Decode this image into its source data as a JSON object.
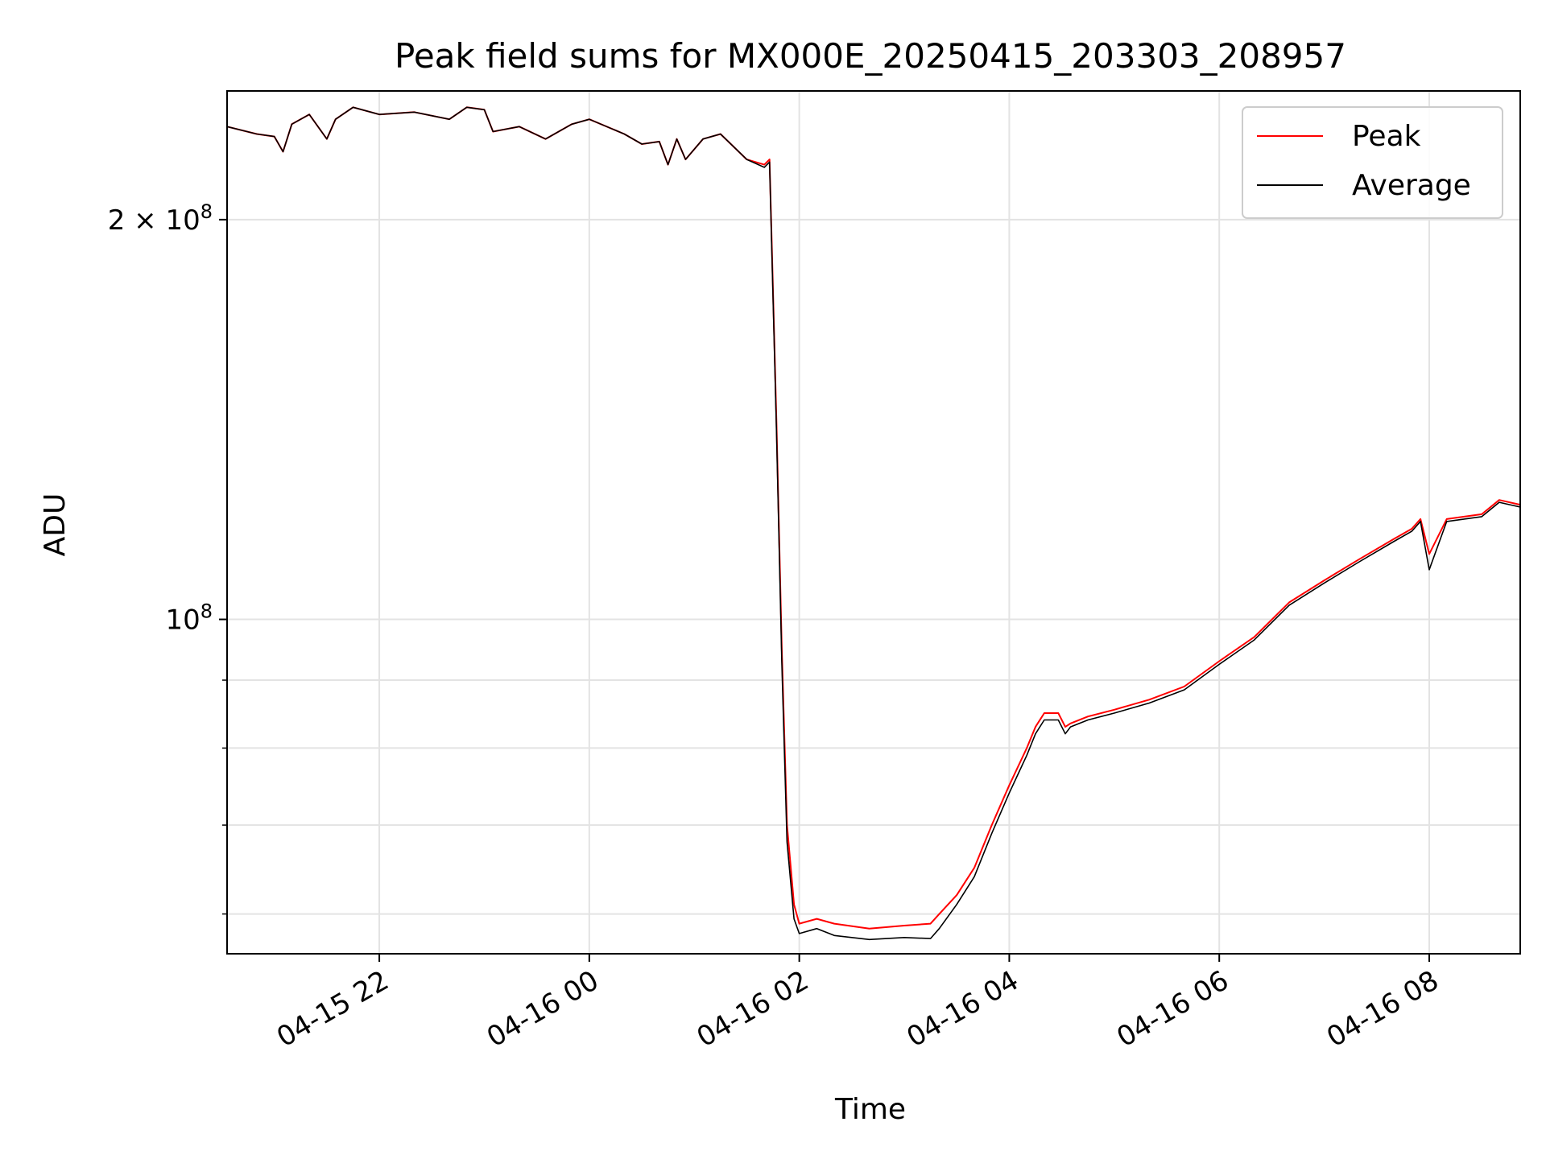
{
  "chart_data": {
    "type": "line",
    "title": "Peak field sums for MX000E_20250415_203303_208957",
    "xlabel": "Time",
    "ylabel": "ADU",
    "x_range": [
      "2025-04-15 20:33",
      "2025-04-16 08:52"
    ],
    "y_scale": "log",
    "ylim": [
      56000000,
      250000000
    ],
    "grid": true,
    "legend_position": "top-right",
    "x_ticks": [
      {
        "t": "2025-04-15 22:00",
        "label": "04-15 22"
      },
      {
        "t": "2025-04-16 00:00",
        "label": "04-16 00"
      },
      {
        "t": "2025-04-16 02:00",
        "label": "04-16 02"
      },
      {
        "t": "2025-04-16 04:00",
        "label": "04-16 04"
      },
      {
        "t": "2025-04-16 06:00",
        "label": "04-16 06"
      },
      {
        "t": "2025-04-16 08:00",
        "label": "04-16 08"
      }
    ],
    "y_major_ticks": [
      {
        "value": 100000000,
        "base": "",
        "exp": "8"
      },
      {
        "value": 200000000,
        "base": "2",
        "exp": "8"
      }
    ],
    "y_minor_ticks": [
      60000000,
      70000000,
      80000000,
      90000000
    ],
    "series": [
      {
        "name": "Peak",
        "color": "#ff0000",
        "points": [
          [
            "2025-04-15 20:33",
            235000000
          ],
          [
            "2025-04-15 20:50",
            232000000
          ],
          [
            "2025-04-15 21:00",
            231000000
          ],
          [
            "2025-04-15 21:05",
            225000000
          ],
          [
            "2025-04-15 21:10",
            236000000
          ],
          [
            "2025-04-15 21:20",
            240000000
          ],
          [
            "2025-04-15 21:30",
            230000000
          ],
          [
            "2025-04-15 21:35",
            238000000
          ],
          [
            "2025-04-15 21:45",
            243000000
          ],
          [
            "2025-04-15 22:00",
            240000000
          ],
          [
            "2025-04-15 22:20",
            241000000
          ],
          [
            "2025-04-15 22:40",
            238000000
          ],
          [
            "2025-04-15 22:50",
            243000000
          ],
          [
            "2025-04-15 23:00",
            242000000
          ],
          [
            "2025-04-15 23:05",
            233000000
          ],
          [
            "2025-04-15 23:20",
            235000000
          ],
          [
            "2025-04-15 23:35",
            230000000
          ],
          [
            "2025-04-15 23:50",
            236000000
          ],
          [
            "2025-04-16 00:00",
            238000000
          ],
          [
            "2025-04-16 00:20",
            232000000
          ],
          [
            "2025-04-16 00:30",
            228000000
          ],
          [
            "2025-04-16 00:40",
            229000000
          ],
          [
            "2025-04-16 00:45",
            220000000
          ],
          [
            "2025-04-16 00:50",
            230000000
          ],
          [
            "2025-04-16 00:55",
            222000000
          ],
          [
            "2025-04-16 01:05",
            230000000
          ],
          [
            "2025-04-16 01:15",
            232000000
          ],
          [
            "2025-04-16 01:30",
            222000000
          ],
          [
            "2025-04-16 01:40",
            220000000
          ],
          [
            "2025-04-16 01:43",
            222000000
          ],
          [
            "2025-04-16 01:47",
            140000000
          ],
          [
            "2025-04-16 01:50",
            95000000
          ],
          [
            "2025-04-16 01:53",
            70000000
          ],
          [
            "2025-04-16 01:57",
            61000000
          ],
          [
            "2025-04-16 02:00",
            59000000
          ],
          [
            "2025-04-16 02:10",
            59500000
          ],
          [
            "2025-04-16 02:20",
            59000000
          ],
          [
            "2025-04-16 02:40",
            58500000
          ],
          [
            "2025-04-16 03:00",
            58800000
          ],
          [
            "2025-04-16 03:15",
            59000000
          ],
          [
            "2025-04-16 03:20",
            60000000
          ],
          [
            "2025-04-16 03:30",
            62000000
          ],
          [
            "2025-04-16 03:40",
            65000000
          ],
          [
            "2025-04-16 03:50",
            70000000
          ],
          [
            "2025-04-16 04:00",
            75000000
          ],
          [
            "2025-04-16 04:10",
            80000000
          ],
          [
            "2025-04-16 04:15",
            83000000
          ],
          [
            "2025-04-16 04:20",
            85000000
          ],
          [
            "2025-04-16 04:28",
            85000000
          ],
          [
            "2025-04-16 04:32",
            83000000
          ],
          [
            "2025-04-16 04:35",
            83500000
          ],
          [
            "2025-04-16 04:45",
            84500000
          ],
          [
            "2025-04-16 05:00",
            85500000
          ],
          [
            "2025-04-16 05:20",
            87000000
          ],
          [
            "2025-04-16 05:40",
            89000000
          ],
          [
            "2025-04-16 06:00",
            93000000
          ],
          [
            "2025-04-16 06:20",
            97000000
          ],
          [
            "2025-04-16 06:40",
            103000000
          ],
          [
            "2025-04-16 07:00",
            107000000
          ],
          [
            "2025-04-16 07:20",
            111000000
          ],
          [
            "2025-04-16 07:40",
            115000000
          ],
          [
            "2025-04-16 07:50",
            117000000
          ],
          [
            "2025-04-16 07:55",
            119000000
          ],
          [
            "2025-04-16 08:00",
            112000000
          ],
          [
            "2025-04-16 08:10",
            119000000
          ],
          [
            "2025-04-16 08:30",
            120000000
          ],
          [
            "2025-04-16 08:40",
            123000000
          ],
          [
            "2025-04-16 08:52",
            122000000
          ]
        ]
      },
      {
        "name": "Average",
        "color": "#000000",
        "points": [
          [
            "2025-04-15 20:33",
            235000000
          ],
          [
            "2025-04-15 20:50",
            232000000
          ],
          [
            "2025-04-15 21:00",
            231000000
          ],
          [
            "2025-04-15 21:05",
            225000000
          ],
          [
            "2025-04-15 21:10",
            236000000
          ],
          [
            "2025-04-15 21:20",
            240000000
          ],
          [
            "2025-04-15 21:30",
            230000000
          ],
          [
            "2025-04-15 21:35",
            238000000
          ],
          [
            "2025-04-15 21:45",
            243000000
          ],
          [
            "2025-04-15 22:00",
            240000000
          ],
          [
            "2025-04-15 22:20",
            241000000
          ],
          [
            "2025-04-15 22:40",
            238000000
          ],
          [
            "2025-04-15 22:50",
            243000000
          ],
          [
            "2025-04-15 23:00",
            242000000
          ],
          [
            "2025-04-15 23:05",
            233000000
          ],
          [
            "2025-04-15 23:20",
            235000000
          ],
          [
            "2025-04-15 23:35",
            230000000
          ],
          [
            "2025-04-15 23:50",
            236000000
          ],
          [
            "2025-04-16 00:00",
            238000000
          ],
          [
            "2025-04-16 00:20",
            232000000
          ],
          [
            "2025-04-16 00:30",
            228000000
          ],
          [
            "2025-04-16 00:40",
            229000000
          ],
          [
            "2025-04-16 00:45",
            220000000
          ],
          [
            "2025-04-16 00:50",
            230000000
          ],
          [
            "2025-04-16 00:55",
            222000000
          ],
          [
            "2025-04-16 01:05",
            230000000
          ],
          [
            "2025-04-16 01:15",
            232000000
          ],
          [
            "2025-04-16 01:30",
            222000000
          ],
          [
            "2025-04-16 01:40",
            219000000
          ],
          [
            "2025-04-16 01:43",
            221000000
          ],
          [
            "2025-04-16 01:47",
            138000000
          ],
          [
            "2025-04-16 01:50",
            93000000
          ],
          [
            "2025-04-16 01:53",
            68000000
          ],
          [
            "2025-04-16 01:57",
            59500000
          ],
          [
            "2025-04-16 02:00",
            58000000
          ],
          [
            "2025-04-16 02:10",
            58500000
          ],
          [
            "2025-04-16 02:20",
            57800000
          ],
          [
            "2025-04-16 02:40",
            57400000
          ],
          [
            "2025-04-16 03:00",
            57600000
          ],
          [
            "2025-04-16 03:15",
            57500000
          ],
          [
            "2025-04-16 03:20",
            58500000
          ],
          [
            "2025-04-16 03:30",
            61000000
          ],
          [
            "2025-04-16 03:40",
            64000000
          ],
          [
            "2025-04-16 03:50",
            69000000
          ],
          [
            "2025-04-16 04:00",
            74000000
          ],
          [
            "2025-04-16 04:10",
            79000000
          ],
          [
            "2025-04-16 04:15",
            82000000
          ],
          [
            "2025-04-16 04:20",
            84000000
          ],
          [
            "2025-04-16 04:28",
            84000000
          ],
          [
            "2025-04-16 04:32",
            82000000
          ],
          [
            "2025-04-16 04:35",
            83000000
          ],
          [
            "2025-04-16 04:45",
            84000000
          ],
          [
            "2025-04-16 05:00",
            85000000
          ],
          [
            "2025-04-16 05:20",
            86500000
          ],
          [
            "2025-04-16 05:40",
            88500000
          ],
          [
            "2025-04-16 06:00",
            92500000
          ],
          [
            "2025-04-16 06:20",
            96500000
          ],
          [
            "2025-04-16 06:40",
            102500000
          ],
          [
            "2025-04-16 07:00",
            106500000
          ],
          [
            "2025-04-16 07:20",
            110500000
          ],
          [
            "2025-04-16 07:40",
            114500000
          ],
          [
            "2025-04-16 07:50",
            116500000
          ],
          [
            "2025-04-16 07:55",
            118500000
          ],
          [
            "2025-04-16 08:00",
            109000000
          ],
          [
            "2025-04-16 08:10",
            118500000
          ],
          [
            "2025-04-16 08:30",
            119500000
          ],
          [
            "2025-04-16 08:40",
            122500000
          ],
          [
            "2025-04-16 08:52",
            121500000
          ]
        ]
      }
    ]
  }
}
